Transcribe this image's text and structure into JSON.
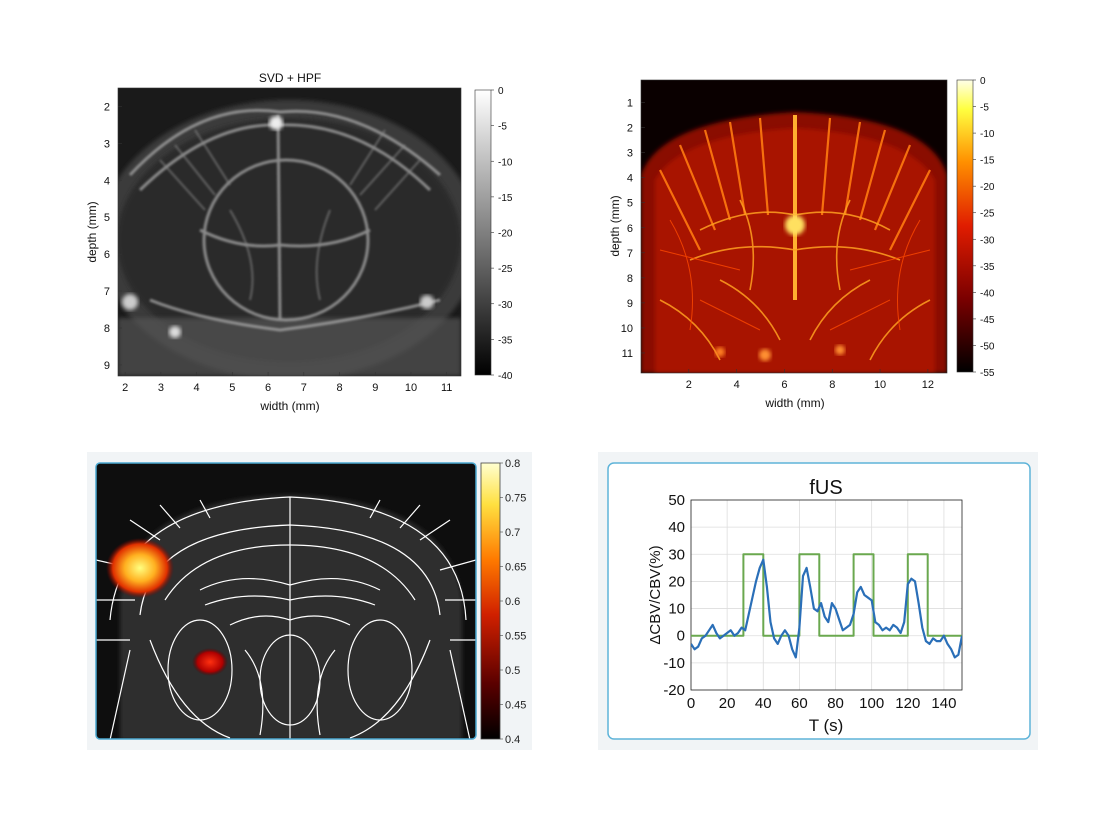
{
  "colors": {
    "gray_cmap": [
      "#000000",
      "#ffffff"
    ],
    "hot_cmap": [
      "#000000",
      "#6a0000",
      "#d81a00",
      "#ff8a00",
      "#ffff40",
      "#ffffe0"
    ],
    "stim_line": "#6aa84f",
    "signal_line": "#2a6fb8",
    "panel_border": "#5fb4d9",
    "atlas_line": "#ffffff"
  },
  "chart_data": [
    {
      "type": "heatmap",
      "title": "SVD + HPF",
      "xlabel": "width (mm)",
      "ylabel": "depth (mm)",
      "x_ticks": [
        "2",
        "3",
        "4",
        "5",
        "6",
        "7",
        "8",
        "9",
        "10",
        "11"
      ],
      "y_ticks": [
        "2",
        "3",
        "4",
        "5",
        "6",
        "7",
        "8",
        "9"
      ],
      "xlim": [
        1.8,
        11.4
      ],
      "ylim": [
        1.5,
        9.3
      ],
      "colorbar": {
        "ticks": [
          "0",
          "-5",
          "-10",
          "-15",
          "-20",
          "-25",
          "-30",
          "-35",
          "-40"
        ],
        "range": [
          -40,
          0
        ],
        "colormap": "gray"
      }
    },
    {
      "type": "heatmap",
      "title": "",
      "xlabel": "width (mm)",
      "ylabel": "depth (mm)",
      "x_ticks": [
        "2",
        "4",
        "6",
        "8",
        "10",
        "12"
      ],
      "y_ticks": [
        "1",
        "2",
        "3",
        "4",
        "5",
        "6",
        "7",
        "8",
        "9",
        "10",
        "11"
      ],
      "xlim": [
        0,
        12.8
      ],
      "ylim": [
        0.1,
        11.8
      ],
      "colorbar": {
        "ticks": [
          "0",
          "-5",
          "-10",
          "-15",
          "-20",
          "-25",
          "-30",
          "-35",
          "-40",
          "-45",
          "-50",
          "-55"
        ],
        "range": [
          -55,
          0
        ],
        "colormap": "hot"
      }
    },
    {
      "type": "heatmap",
      "title": "",
      "colorbar": {
        "ticks": [
          "0.8",
          "0.75",
          "0.7",
          "0.65",
          "0.6",
          "0.55",
          "0.5",
          "0.45",
          "0.4"
        ],
        "range": [
          0.4,
          0.8
        ],
        "colormap": "hot"
      }
    },
    {
      "type": "line",
      "title": "fUS",
      "xlabel": "T (s)",
      "ylabel": "ΔCBV/CBV(%)",
      "xlim": [
        0,
        150
      ],
      "ylim": [
        -20,
        50
      ],
      "x_ticks": [
        "0",
        "20",
        "40",
        "60",
        "80",
        "100",
        "120",
        "140"
      ],
      "y_ticks": [
        "-20",
        "-10",
        "0",
        "10",
        "20",
        "30",
        "40",
        "50"
      ],
      "grid": true,
      "series": [
        {
          "kind": "stimulus",
          "x": [
            0,
            29,
            29,
            40,
            40,
            60,
            60,
            71,
            71,
            90,
            90,
            101,
            101,
            120,
            120,
            131,
            131,
            150
          ],
          "y": [
            0,
            0,
            30,
            30,
            0,
            0,
            30,
            30,
            0,
            0,
            30,
            30,
            0,
            0,
            30,
            30,
            0,
            0
          ]
        },
        {
          "kind": "response",
          "x": [
            0,
            2,
            4,
            6,
            8,
            10,
            12,
            14,
            16,
            18,
            20,
            22,
            24,
            26,
            28,
            30,
            32,
            34,
            36,
            38,
            40,
            42,
            44,
            46,
            48,
            50,
            52,
            54,
            56,
            58,
            60,
            62,
            64,
            66,
            68,
            70,
            72,
            74,
            76,
            78,
            80,
            82,
            84,
            86,
            88,
            90,
            92,
            94,
            96,
            98,
            100,
            102,
            104,
            106,
            108,
            110,
            112,
            114,
            116,
            118,
            120,
            122,
            124,
            126,
            128,
            130,
            132,
            134,
            136,
            138,
            140,
            142,
            144,
            146,
            148,
            150
          ],
          "y": [
            -3,
            -5,
            -4,
            -1,
            0,
            2,
            4,
            1,
            -1,
            0,
            1,
            2,
            0,
            1,
            3,
            2,
            8,
            14,
            20,
            25,
            28,
            18,
            5,
            -1,
            -3,
            0,
            2,
            0,
            -5,
            -8,
            3,
            22,
            25,
            18,
            10,
            9,
            12,
            7,
            5,
            12,
            10,
            6,
            2,
            3,
            4,
            8,
            16,
            18,
            15,
            14,
            13,
            5,
            4,
            2,
            3,
            2,
            4,
            3,
            1,
            5,
            19,
            21,
            20,
            12,
            3,
            -2,
            -3,
            -1,
            -2,
            -2,
            0,
            -3,
            -5,
            -8,
            -7,
            0
          ]
        }
      ]
    }
  ]
}
